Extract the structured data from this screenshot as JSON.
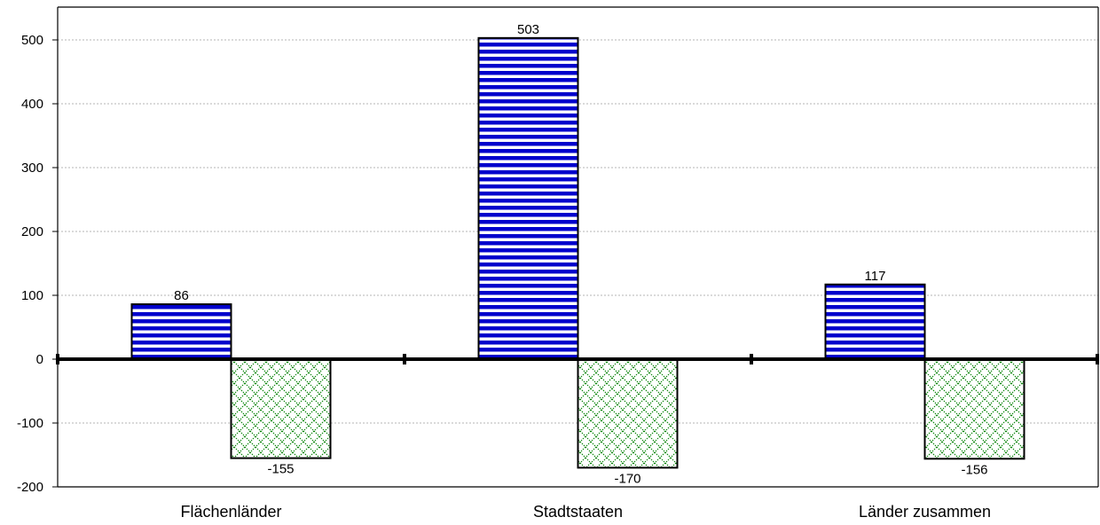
{
  "chart_data": {
    "type": "bar",
    "title": "",
    "xlabel": "",
    "ylabel": "",
    "categories": [
      "Flächenländer",
      "Stadtstaaten",
      "Länder zusammen"
    ],
    "series": [
      {
        "values": [
          86,
          503,
          117
        ],
        "color": "#0000cc",
        "pattern": "horizontal-stripes"
      },
      {
        "values": [
          -155,
          -170,
          -156
        ],
        "color": "#008000",
        "pattern": "diagonal-crosshatch"
      }
    ],
    "data_labels": [
      [
        "86",
        "503",
        "117"
      ],
      [
        "-155",
        "-170",
        "-156"
      ]
    ],
    "ylim": [
      -200,
      550
    ],
    "yticks": [
      -200,
      -100,
      0,
      100,
      200,
      300,
      400,
      500
    ],
    "ytick_labels": [
      "-200",
      "-100",
      "0",
      "100",
      "200",
      "300",
      "400",
      "500"
    ],
    "grid": true,
    "legend": "none"
  }
}
